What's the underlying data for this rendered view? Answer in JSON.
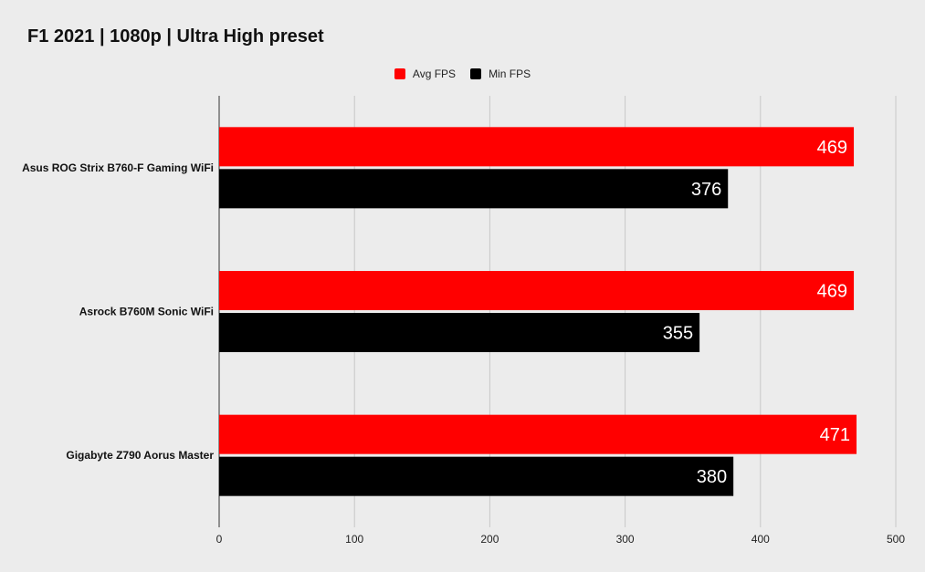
{
  "chart_data": {
    "type": "bar",
    "orientation": "horizontal",
    "title": "F1 2021 | 1080p | Ultra High preset",
    "categories": [
      "Asus ROG Strix B760-F Gaming WiFi",
      "Asrock B760M Sonic WiFi",
      "Gigabyte Z790 Aorus Master"
    ],
    "series": [
      {
        "name": "Avg FPS",
        "color": "#ff0000",
        "values": [
          469,
          469,
          471
        ]
      },
      {
        "name": "Min FPS",
        "color": "#000000",
        "values": [
          376,
          355,
          380
        ]
      }
    ],
    "xlim": [
      0,
      500
    ],
    "xticks": [
      "0",
      "100",
      "200",
      "300",
      "400",
      "500"
    ],
    "grid": true,
    "legend_position": "top-center",
    "data_labels": true
  }
}
